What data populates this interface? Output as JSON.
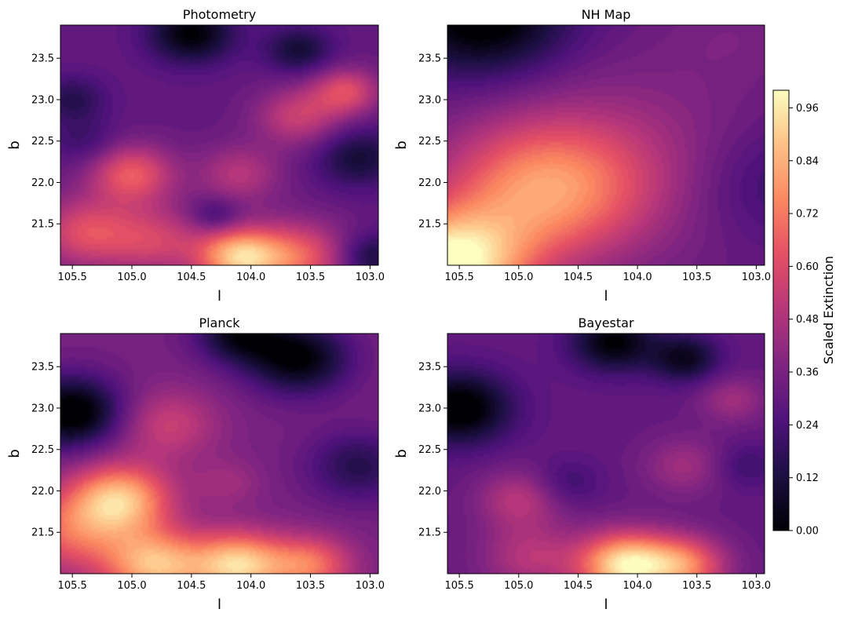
{
  "chart_data": {
    "type": "heatmap",
    "colormap": "magma",
    "colorbar": {
      "label": "Scaled Extinction",
      "range": [
        0.0,
        1.0
      ],
      "ticks": [
        "0.00",
        "0.12",
        "0.24",
        "0.36",
        "0.48",
        "0.60",
        "0.72",
        "0.84",
        "0.96"
      ]
    },
    "panels": [
      {
        "title": "Photometry",
        "xlabel": "l",
        "ylabel": "b",
        "xlim": [
          105.6,
          102.93
        ],
        "ylim": [
          21.0,
          23.9
        ],
        "xticks": [
          "105.5",
          "105.0",
          "104.5",
          "104.0",
          "103.5",
          "103.0"
        ],
        "yticks": [
          "21.5",
          "22.0",
          "22.5",
          "23.0",
          "23.5"
        ],
        "base": 0.3,
        "features": [
          {
            "l": 104.1,
            "b": 21.1,
            "v": 0.55,
            "s": 0.25
          },
          {
            "l": 103.6,
            "b": 21.1,
            "v": 0.35,
            "s": 0.3
          },
          {
            "l": 105.0,
            "b": 22.1,
            "v": 0.35,
            "s": 0.25
          },
          {
            "l": 105.4,
            "b": 21.4,
            "v": 0.3,
            "s": 0.3
          },
          {
            "l": 104.8,
            "b": 21.3,
            "v": 0.25,
            "s": 0.3
          },
          {
            "l": 103.6,
            "b": 22.8,
            "v": 0.25,
            "s": 0.25
          },
          {
            "l": 103.2,
            "b": 23.1,
            "v": 0.3,
            "s": 0.2
          },
          {
            "l": 104.1,
            "b": 22.1,
            "v": 0.2,
            "s": 0.25
          },
          {
            "l": 104.5,
            "b": 23.8,
            "v": -0.3,
            "s": 0.25
          },
          {
            "l": 103.6,
            "b": 23.6,
            "v": -0.2,
            "s": 0.2
          },
          {
            "l": 103.1,
            "b": 22.3,
            "v": -0.2,
            "s": 0.25
          },
          {
            "l": 105.5,
            "b": 23.0,
            "v": -0.15,
            "s": 0.2
          },
          {
            "l": 103.0,
            "b": 21.1,
            "v": -0.2,
            "s": 0.2
          },
          {
            "l": 104.3,
            "b": 21.6,
            "v": -0.15,
            "s": 0.15
          },
          {
            "l": 105.4,
            "b": 22.5,
            "v": -0.1,
            "s": 0.2
          }
        ]
      },
      {
        "title": "NH Map",
        "xlabel": "l",
        "ylabel": "b",
        "xlim": [
          105.6,
          102.93
        ],
        "ylim": [
          21.0,
          23.9
        ],
        "xticks": [
          "105.5",
          "105.0",
          "104.5",
          "104.0",
          "103.5",
          "103.0"
        ],
        "yticks": [
          "21.5",
          "22.0",
          "22.5",
          "23.0",
          "23.5"
        ],
        "base": 0.3,
        "features": [
          {
            "l": 105.6,
            "b": 21.0,
            "v": 0.7,
            "s": 0.45
          },
          {
            "l": 104.8,
            "b": 21.9,
            "v": 0.45,
            "s": 0.6
          },
          {
            "l": 104.0,
            "b": 22.3,
            "v": 0.12,
            "s": 0.8
          },
          {
            "l": 105.3,
            "b": 24.0,
            "v": -0.35,
            "s": 0.5
          },
          {
            "l": 102.9,
            "b": 22.0,
            "v": -0.12,
            "s": 0.5
          },
          {
            "l": 103.2,
            "b": 23.8,
            "v": 0.05,
            "s": 0.4
          }
        ]
      },
      {
        "title": "Planck",
        "xlabel": "l",
        "ylabel": "b",
        "xlim": [
          105.6,
          102.93
        ],
        "ylim": [
          21.0,
          23.9
        ],
        "xticks": [
          "105.5",
          "105.0",
          "104.5",
          "104.0",
          "103.5",
          "103.0"
        ],
        "yticks": [
          "21.5",
          "22.0",
          "22.5",
          "23.0",
          "23.5"
        ],
        "base": 0.35,
        "features": [
          {
            "l": 105.1,
            "b": 21.9,
            "v": 0.5,
            "s": 0.3
          },
          {
            "l": 104.8,
            "b": 21.1,
            "v": 0.5,
            "s": 0.3
          },
          {
            "l": 104.1,
            "b": 21.1,
            "v": 0.55,
            "s": 0.28
          },
          {
            "l": 103.5,
            "b": 21.1,
            "v": 0.35,
            "s": 0.25
          },
          {
            "l": 104.7,
            "b": 22.8,
            "v": 0.2,
            "s": 0.3
          },
          {
            "l": 105.5,
            "b": 21.5,
            "v": 0.3,
            "s": 0.35
          },
          {
            "l": 105.5,
            "b": 22.95,
            "v": -0.4,
            "s": 0.3
          },
          {
            "l": 103.6,
            "b": 23.6,
            "v": -0.35,
            "s": 0.3
          },
          {
            "l": 104.1,
            "b": 23.9,
            "v": -0.3,
            "s": 0.25
          },
          {
            "l": 103.1,
            "b": 22.3,
            "v": -0.2,
            "s": 0.3
          },
          {
            "l": 104.2,
            "b": 22.1,
            "v": 0.1,
            "s": 0.2
          }
        ]
      },
      {
        "title": "Bayestar",
        "xlabel": "l",
        "ylabel": "b",
        "xlim": [
          105.6,
          102.93
        ],
        "ylim": [
          21.0,
          23.9
        ],
        "xticks": [
          "105.5",
          "105.0",
          "104.5",
          "104.0",
          "103.5",
          "103.0"
        ],
        "yticks": [
          "21.5",
          "22.0",
          "22.5",
          "23.0",
          "23.5"
        ],
        "base": 0.3,
        "features": [
          {
            "l": 104.1,
            "b": 21.1,
            "v": 0.65,
            "s": 0.28
          },
          {
            "l": 103.6,
            "b": 21.1,
            "v": 0.4,
            "s": 0.25
          },
          {
            "l": 105.0,
            "b": 21.9,
            "v": 0.2,
            "s": 0.25
          },
          {
            "l": 104.9,
            "b": 21.2,
            "v": 0.2,
            "s": 0.3
          },
          {
            "l": 103.6,
            "b": 22.3,
            "v": 0.15,
            "s": 0.25
          },
          {
            "l": 103.2,
            "b": 23.1,
            "v": 0.15,
            "s": 0.2
          },
          {
            "l": 105.5,
            "b": 23.0,
            "v": -0.35,
            "s": 0.3
          },
          {
            "l": 104.2,
            "b": 23.8,
            "v": -0.3,
            "s": 0.25
          },
          {
            "l": 103.6,
            "b": 23.6,
            "v": -0.25,
            "s": 0.2
          },
          {
            "l": 104.6,
            "b": 22.1,
            "v": -0.1,
            "s": 0.2
          },
          {
            "l": 103.1,
            "b": 22.3,
            "v": -0.1,
            "s": 0.2
          }
        ]
      }
    ]
  }
}
